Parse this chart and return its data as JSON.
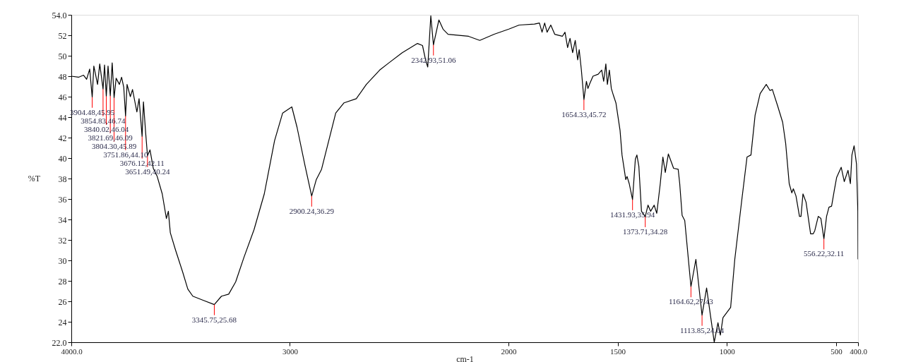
{
  "chart_data": {
    "type": "line",
    "xlabel": "cm-1",
    "ylabel": "%T",
    "xlim": [
      4000,
      400
    ],
    "xticks": [
      {
        "value": 4000,
        "label": "4000.0"
      },
      3000,
      2000,
      1500,
      1000,
      500,
      {
        "value": 400,
        "label": "400.0"
      }
    ],
    "ylim": [
      22,
      54
    ],
    "yticks": [
      {
        "value": 22,
        "label": "22.0"
      },
      24,
      26,
      28,
      30,
      32,
      34,
      36,
      38,
      40,
      42,
      44,
      46,
      48,
      50,
      52,
      {
        "value": 54,
        "label": "54.0"
      }
    ],
    "grid": false,
    "series": [
      {
        "color": "#000000",
        "x": [
          4000,
          3967,
          3944,
          3930,
          3916,
          3904.48,
          3897,
          3880,
          3870,
          3854.83,
          3848,
          3840.02,
          3832,
          3821.69,
          3813,
          3804.3,
          3795,
          3780,
          3770,
          3760,
          3751.86,
          3745,
          3730,
          3720,
          3700,
          3690,
          3676.12,
          3670,
          3660,
          3651.49,
          3640,
          3625,
          3607,
          3584,
          3565,
          3556,
          3547,
          3523,
          3491,
          3467,
          3444,
          3397,
          3345.75,
          3313,
          3280,
          3248,
          3210,
          3164,
          3117,
          3070,
          3033,
          2991,
          2967,
          2930,
          2900.24,
          2879,
          2855,
          2822,
          2790,
          2752,
          2696,
          2650,
          2589,
          2547,
          2486,
          2416,
          2393,
          2379,
          2369,
          2355,
          2342.93,
          2318,
          2299,
          2276,
          2182,
          2131,
          2065,
          1998,
          1951,
          1881,
          1858,
          1846,
          1834,
          1823,
          1806,
          1788,
          1753,
          1741,
          1729,
          1718,
          1706,
          1694,
          1683,
          1676,
          1666,
          1654.33,
          1643,
          1636,
          1629,
          1613,
          1589,
          1573,
          1564,
          1554,
          1547,
          1538,
          1529,
          1519,
          1508,
          1489,
          1480,
          1470,
          1463,
          1457,
          1447,
          1431.93,
          1419,
          1412,
          1403,
          1391,
          1373.71,
          1361,
          1349,
          1333,
          1321,
          1305,
          1293,
          1282,
          1268,
          1244,
          1223,
          1216,
          1205,
          1193,
          1164.62,
          1142,
          1113.85,
          1093,
          1058,
          1041,
          1030,
          1018,
          983,
          964,
          932,
          908,
          890,
          871,
          848,
          820,
          803,
          792,
          768,
          745,
          731,
          715,
          703,
          696,
          684,
          668,
          661,
          652,
          638,
          617,
          605,
          598,
          582,
          570,
          556.22,
          544,
          533,
          521,
          509,
          498,
          477,
          463,
          446,
          435,
          428,
          418,
          407,
          401,
          400
        ],
        "values": [
          48.0,
          47.9,
          48.1,
          47.7,
          48.7,
          45.95,
          49.0,
          47.2,
          49.2,
          46.74,
          49.1,
          46.04,
          49.0,
          46.09,
          49.3,
          45.89,
          47.8,
          47.2,
          47.9,
          46.9,
          44.1,
          47.2,
          46.0,
          46.7,
          44.5,
          45.8,
          42.11,
          45.5,
          42.5,
          40.24,
          40.8,
          39.0,
          38.2,
          36.5,
          34.1,
          34.8,
          32.7,
          31.0,
          28.9,
          27.2,
          26.5,
          26.1,
          25.68,
          26.5,
          26.7,
          27.9,
          30.3,
          33.0,
          36.5,
          41.7,
          44.4,
          45.0,
          43.0,
          39.2,
          36.29,
          37.9,
          38.9,
          41.7,
          44.4,
          45.4,
          45.8,
          47.2,
          48.6,
          49.3,
          50.3,
          51.2,
          51.0,
          49.6,
          48.9,
          53.9,
          51.06,
          53.5,
          52.6,
          52.1,
          51.9,
          51.5,
          52.1,
          52.6,
          53.0,
          53.1,
          53.2,
          52.3,
          53.2,
          52.3,
          53.0,
          52.1,
          51.9,
          52.3,
          50.8,
          51.7,
          50.3,
          51.5,
          49.6,
          50.6,
          48.6,
          45.72,
          47.5,
          46.8,
          47.2,
          48.0,
          48.2,
          48.6,
          47.5,
          49.2,
          47.2,
          48.6,
          46.8,
          46.1,
          45.4,
          42.7,
          40.3,
          38.9,
          37.9,
          38.2,
          37.5,
          35.94,
          39.9,
          40.3,
          39.2,
          34.8,
          34.28,
          35.4,
          34.8,
          35.4,
          34.6,
          37.5,
          40.1,
          38.6,
          40.4,
          39.0,
          38.9,
          37.5,
          34.4,
          33.9,
          27.43,
          30.1,
          24.64,
          27.3,
          22.0,
          23.9,
          22.7,
          24.4,
          25.4,
          30.1,
          35.9,
          40.1,
          40.3,
          44.2,
          46.3,
          47.2,
          46.6,
          46.7,
          45.1,
          43.5,
          41.4,
          37.5,
          36.6,
          37.0,
          36.3,
          34.3,
          34.3,
          36.5,
          35.7,
          32.6,
          32.6,
          32.9,
          34.3,
          34.1,
          32.11,
          34.3,
          35.2,
          35.3,
          36.8,
          38.1,
          39.1,
          37.7,
          38.8,
          37.5,
          40.3,
          41.2,
          39.4,
          34.8,
          30.1
        ]
      }
    ],
    "annotations": [
      {
        "text": "3904.48,45.95",
        "x": 3904.48,
        "y": 45.95
      },
      {
        "text": "3854.83,46.74",
        "x": 3854.83,
        "y": 46.74
      },
      {
        "text": "3840.02,46.04",
        "x": 3840.02,
        "y": 46.04
      },
      {
        "text": "3821.69,46.09",
        "x": 3821.69,
        "y": 46.09
      },
      {
        "text": "3804.30,45.89",
        "x": 3804.3,
        "y": 45.89
      },
      {
        "text": "3751.86,44.10",
        "x": 3751.86,
        "y": 44.1
      },
      {
        "text": "3676.12,42.11",
        "x": 3676.12,
        "y": 42.11
      },
      {
        "text": "3651.49,40.24",
        "x": 3651.49,
        "y": 40.24
      },
      {
        "text": "3345.75,25.68",
        "x": 3345.75,
        "y": 25.68
      },
      {
        "text": "2900.24,36.29",
        "x": 2900.24,
        "y": 36.29
      },
      {
        "text": "2342.93,51.06",
        "x": 2342.93,
        "y": 51.06
      },
      {
        "text": "1654.33,45.72",
        "x": 1654.33,
        "y": 45.72
      },
      {
        "text": "1431.93,35.94",
        "x": 1431.93,
        "y": 35.94
      },
      {
        "text": "1373.71,34.28",
        "x": 1373.71,
        "y": 34.28
      },
      {
        "text": "1164.62,27.43",
        "x": 1164.62,
        "y": 27.43
      },
      {
        "text": "1113.85,24.64",
        "x": 1113.85,
        "y": 24.64
      },
      {
        "text": "556.22,32.11",
        "x": 556.22,
        "y": 32.11
      }
    ]
  }
}
